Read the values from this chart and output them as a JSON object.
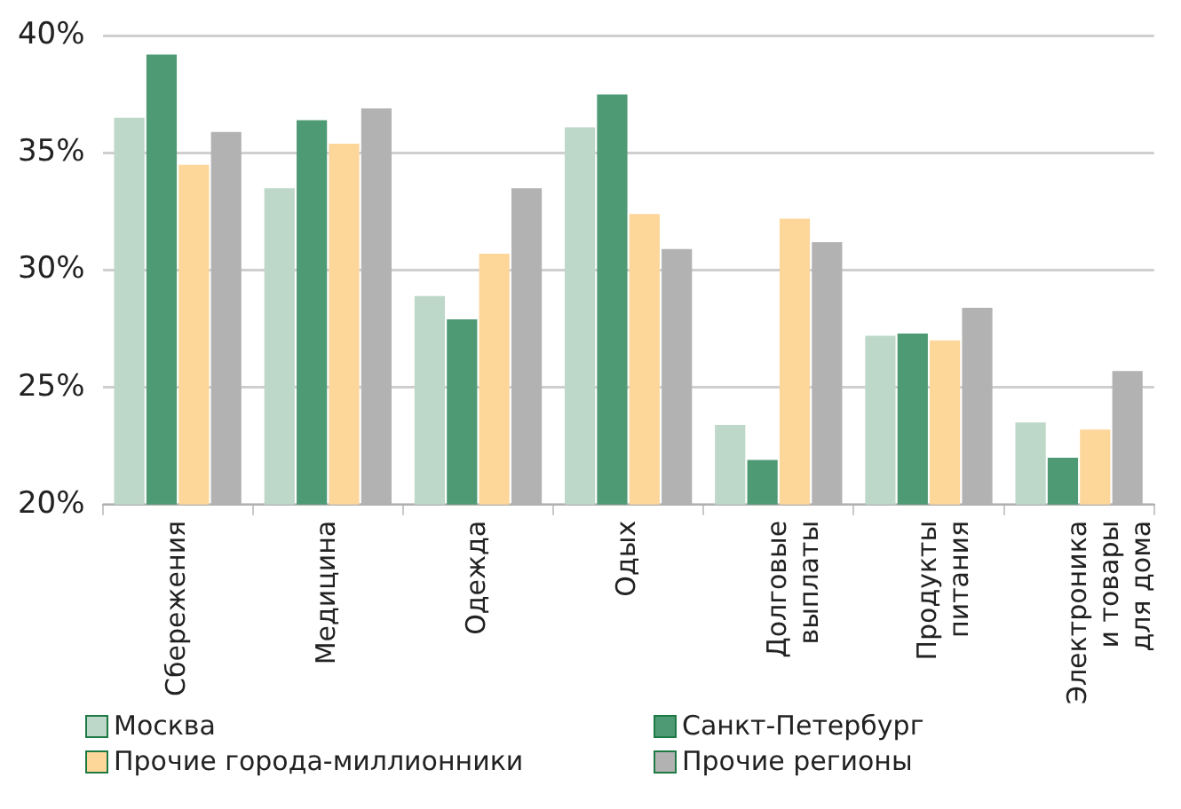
{
  "chart_data": {
    "type": "bar",
    "categories": [
      "Сбережения",
      "Медицина",
      "Одежда",
      "Одых",
      "Долговые\nвыплаты",
      "Продукты\nпитания",
      "Электроника\nи товары\nдля дома"
    ],
    "series": [
      {
        "name": "Москва",
        "color": "#bdd7c8",
        "values": [
          36.5,
          33.5,
          28.9,
          36.1,
          23.4,
          27.2,
          23.5
        ]
      },
      {
        "name": "Санкт-Петербург",
        "color": "#4e9a74",
        "values": [
          39.2,
          36.4,
          27.9,
          37.5,
          21.9,
          27.3,
          22.0
        ]
      },
      {
        "name": "Прочие города-миллионники",
        "color": "#fdd69a",
        "values": [
          34.5,
          35.4,
          30.7,
          32.4,
          32.2,
          27.0,
          23.2
        ]
      },
      {
        "name": "Прочие регионы",
        "color": "#b2b2b2",
        "values": [
          35.9,
          36.9,
          33.5,
          30.9,
          31.2,
          28.4,
          25.7
        ]
      }
    ],
    "ylim": [
      20,
      40
    ],
    "yticks": [
      {
        "value": 20,
        "label": "20%"
      },
      {
        "value": 25,
        "label": "25%"
      },
      {
        "value": 30,
        "label": "30%"
      },
      {
        "value": 35,
        "label": "35%"
      },
      {
        "value": 40,
        "label": "40%"
      }
    ],
    "grid": "y",
    "legend": "bottom"
  }
}
